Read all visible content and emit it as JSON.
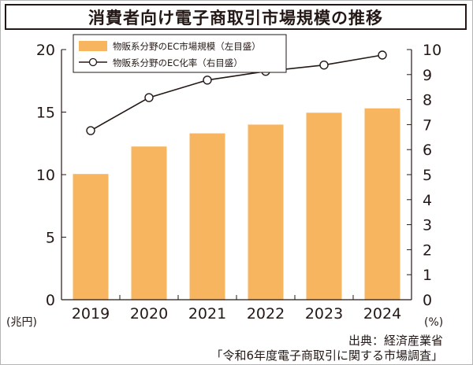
{
  "chart_data": {
    "type": "bar",
    "title": "消費者向け電子商取引市場規模の推移",
    "categories": [
      "2019",
      "2020",
      "2021",
      "2022",
      "2023",
      "2024"
    ],
    "series": [
      {
        "name": "物販系分野のEC市場規模（左目盛）",
        "type": "bar",
        "axis": "left",
        "values": [
          10.05,
          12.25,
          13.3,
          14.0,
          14.95,
          15.3
        ],
        "color": "#f8b560"
      },
      {
        "name": "物販系分野のEC化率（右目盛）",
        "type": "line",
        "axis": "right",
        "values": [
          6.76,
          8.08,
          8.78,
          9.13,
          9.38,
          9.78
        ],
        "color": "#231815"
      }
    ],
    "left_axis": {
      "ylim": [
        0,
        20
      ],
      "ticks": [
        "0",
        "5",
        "10",
        "15",
        "20"
      ],
      "unit": "(兆円)"
    },
    "right_axis": {
      "ylim": [
        0,
        10
      ],
      "ticks": [
        "0",
        "1",
        "2",
        "3",
        "4",
        "5",
        "6",
        "7",
        "8",
        "9",
        "10"
      ],
      "unit": "(%)"
    },
    "legend_position": "top-left",
    "grid": false
  },
  "source": {
    "line1": "出典：経済産業省",
    "line2": "「令和6年度電子商取引に関する市場調査」"
  },
  "colors": {
    "bar": "#f8b560",
    "line": "#231815",
    "text": "#231815"
  }
}
